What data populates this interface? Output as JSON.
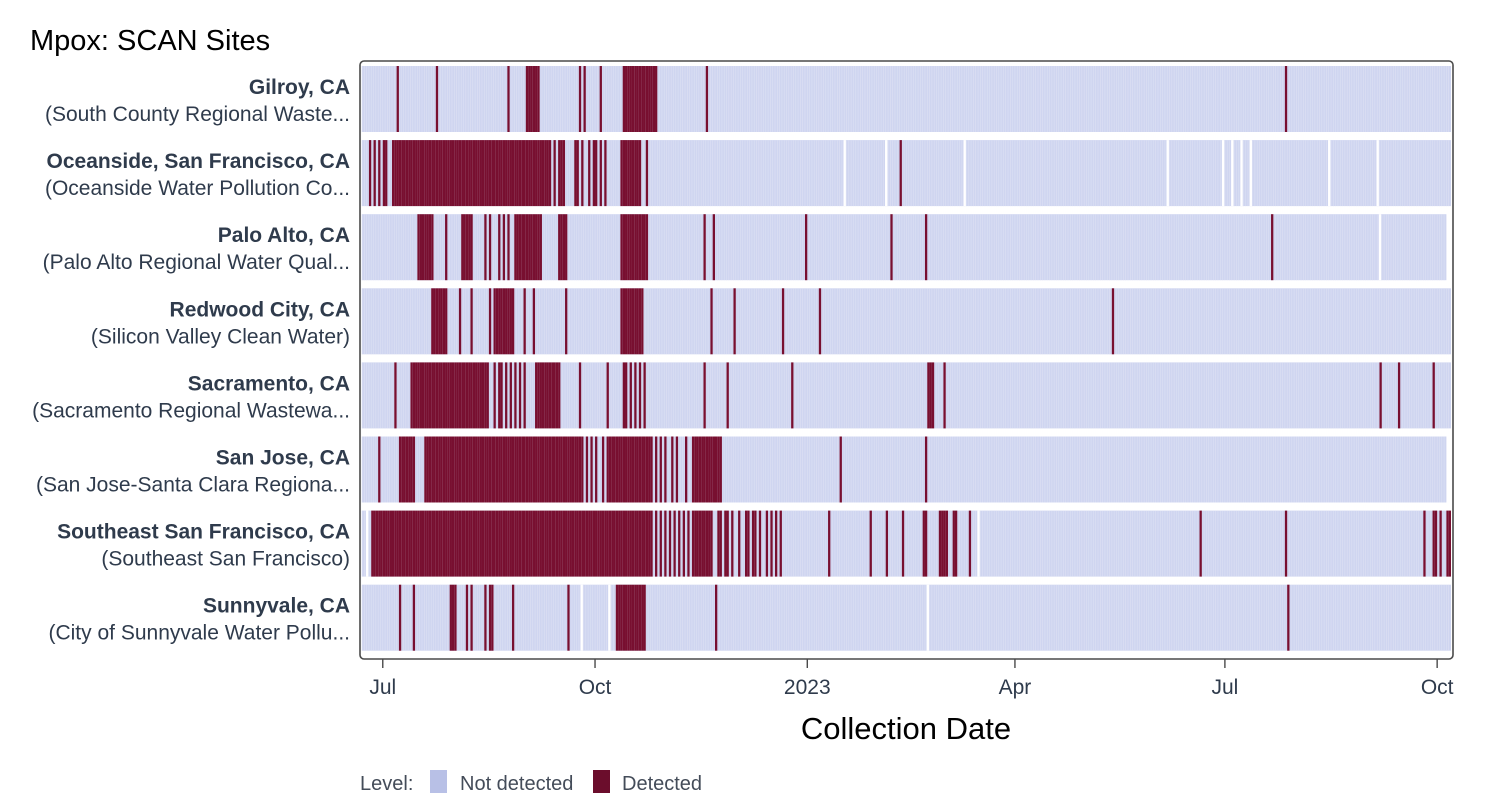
{
  "chart_data": {
    "type": "heatmap",
    "title": "Mpox: SCAN Sites",
    "xlabel": "Collection Date",
    "ylabel": "",
    "x_range": [
      "2022-06-22",
      "2023-10-06"
    ],
    "x_ticks": [
      {
        "date": "2022-07-01",
        "label": "Jul"
      },
      {
        "date": "2022-10-01",
        "label": "Oct"
      },
      {
        "date": "2023-01-01",
        "label": "2023"
      },
      {
        "date": "2023-04-01",
        "label": "Apr"
      },
      {
        "date": "2023-07-01",
        "label": "Jul"
      },
      {
        "date": "2023-10-01",
        "label": "Oct"
      }
    ],
    "legend": {
      "title": "Level:",
      "placement": "bottom-left",
      "items": [
        {
          "label": "Not detected",
          "color": "#b8c0e6"
        },
        {
          "label": "Detected",
          "color": "#6b0d2c"
        }
      ]
    },
    "colors": {
      "not_detected": "#cfd5f0",
      "detected": "#780f30",
      "frame": "#4a4a4a"
    },
    "series": [
      {
        "name": "Gilroy, CA",
        "facility": "(South County Regional Waste...",
        "start": "2022-06-22",
        "end": "2023-10-06",
        "gaps": [],
        "detected": [
          "2022-07-07",
          "2022-07-24",
          "2022-08-24",
          "2022-09-01",
          "2022-09-02",
          "2022-09-03",
          "2022-09-04",
          "2022-09-05",
          "2022-09-06",
          "2022-09-24",
          "2022-09-26",
          "2022-10-03",
          "2022-10-13",
          "2022-10-14",
          "2022-10-15",
          "2022-10-16",
          "2022-10-17",
          "2022-10-18",
          "2022-10-19",
          "2022-10-20",
          "2022-10-21",
          "2022-10-22",
          "2022-10-23",
          "2022-10-24",
          "2022-10-25",
          "2022-10-26",
          "2022-10-27",
          "2022-11-18",
          "2023-07-27"
        ]
      },
      {
        "name": "Oceanside, San Francisco, CA",
        "facility": "(Oceanside Water Pollution Co...",
        "start": "2022-06-22",
        "end": "2023-10-06",
        "gaps": [
          "2023-01-17",
          "2023-02-04",
          "2023-03-10",
          "2023-06-06",
          "2023-06-30",
          "2023-07-04",
          "2023-07-08",
          "2023-07-12",
          "2023-08-15",
          "2023-09-05"
        ],
        "detected": [
          "2022-06-25",
          "2022-06-27",
          "2022-06-29",
          "2022-07-01",
          "2022-07-02",
          "2022-07-05",
          "2022-07-06",
          "2022-07-07",
          "2022-07-08",
          "2022-07-09",
          "2022-07-10",
          "2022-07-11",
          "2022-07-12",
          "2022-07-13",
          "2022-07-14",
          "2022-07-15",
          "2022-07-16",
          "2022-07-17",
          "2022-07-18",
          "2022-07-19",
          "2022-07-20",
          "2022-07-21",
          "2022-07-22",
          "2022-07-23",
          "2022-07-24",
          "2022-07-25",
          "2022-07-26",
          "2022-07-27",
          "2022-07-28",
          "2022-07-29",
          "2022-07-30",
          "2022-07-31",
          "2022-08-01",
          "2022-08-02",
          "2022-08-03",
          "2022-08-04",
          "2022-08-05",
          "2022-08-06",
          "2022-08-07",
          "2022-08-08",
          "2022-08-09",
          "2022-08-10",
          "2022-08-11",
          "2022-08-12",
          "2022-08-13",
          "2022-08-14",
          "2022-08-15",
          "2022-08-16",
          "2022-08-17",
          "2022-08-18",
          "2022-08-19",
          "2022-08-20",
          "2022-08-21",
          "2022-08-22",
          "2022-08-23",
          "2022-08-24",
          "2022-08-25",
          "2022-08-26",
          "2022-08-27",
          "2022-08-28",
          "2022-08-29",
          "2022-08-30",
          "2022-08-31",
          "2022-09-01",
          "2022-09-02",
          "2022-09-03",
          "2022-09-04",
          "2022-09-05",
          "2022-09-06",
          "2022-09-07",
          "2022-09-08",
          "2022-09-09",
          "2022-09-10",
          "2022-09-11",
          "2022-09-13",
          "2022-09-15",
          "2022-09-16",
          "2022-09-17",
          "2022-09-22",
          "2022-09-23",
          "2022-09-25",
          "2022-09-28",
          "2022-09-30",
          "2022-10-01",
          "2022-10-03",
          "2022-10-05",
          "2022-10-12",
          "2022-10-13",
          "2022-10-14",
          "2022-10-15",
          "2022-10-16",
          "2022-10-17",
          "2022-10-18",
          "2022-10-19",
          "2022-10-20",
          "2022-10-23",
          "2023-02-10"
        ]
      },
      {
        "name": "Palo Alto, CA",
        "facility": "(Palo Alto Regional Water Qual...",
        "start": "2022-06-22",
        "end": "2023-10-04",
        "gaps": [
          "2023-09-06"
        ],
        "detected": [
          "2022-07-16",
          "2022-07-17",
          "2022-07-18",
          "2022-07-19",
          "2022-07-20",
          "2022-07-21",
          "2022-07-22",
          "2022-07-28",
          "2022-08-04",
          "2022-08-05",
          "2022-08-06",
          "2022-08-07",
          "2022-08-08",
          "2022-08-14",
          "2022-08-16",
          "2022-08-20",
          "2022-08-22",
          "2022-08-24",
          "2022-08-27",
          "2022-08-28",
          "2022-08-29",
          "2022-08-30",
          "2022-08-31",
          "2022-09-01",
          "2022-09-02",
          "2022-09-03",
          "2022-09-04",
          "2022-09-05",
          "2022-09-06",
          "2022-09-07",
          "2022-09-15",
          "2022-09-16",
          "2022-09-17",
          "2022-09-18",
          "2022-10-12",
          "2022-10-13",
          "2022-10-14",
          "2022-10-15",
          "2022-10-16",
          "2022-10-17",
          "2022-10-18",
          "2022-10-19",
          "2022-10-20",
          "2022-10-21",
          "2022-10-22",
          "2022-10-23",
          "2022-11-17",
          "2022-11-21",
          "2022-12-31",
          "2023-02-06",
          "2023-02-21",
          "2023-07-21"
        ]
      },
      {
        "name": "Redwood City, CA",
        "facility": "(Silicon Valley Clean Water)",
        "start": "2022-06-22",
        "end": "2023-10-06",
        "gaps": [],
        "detected": [
          "2022-07-22",
          "2022-07-23",
          "2022-07-24",
          "2022-07-25",
          "2022-07-26",
          "2022-07-27",
          "2022-07-28",
          "2022-08-03",
          "2022-08-08",
          "2022-08-16",
          "2022-08-18",
          "2022-08-19",
          "2022-08-20",
          "2022-08-21",
          "2022-08-22",
          "2022-08-23",
          "2022-08-24",
          "2022-08-25",
          "2022-08-26",
          "2022-08-31",
          "2022-09-04",
          "2022-09-18",
          "2022-10-12",
          "2022-10-13",
          "2022-10-14",
          "2022-10-15",
          "2022-10-16",
          "2022-10-17",
          "2022-10-18",
          "2022-10-19",
          "2022-10-20",
          "2022-10-21",
          "2022-11-20",
          "2022-11-30",
          "2022-12-21",
          "2023-01-06",
          "2023-05-13"
        ]
      },
      {
        "name": "Sacramento, CA",
        "facility": "(Sacramento Regional Wastewa...",
        "start": "2022-06-22",
        "end": "2023-10-06",
        "gaps": [],
        "detected": [
          "2022-07-06",
          "2022-07-13",
          "2022-07-14",
          "2022-07-15",
          "2022-07-16",
          "2022-07-17",
          "2022-07-18",
          "2022-07-19",
          "2022-07-20",
          "2022-07-21",
          "2022-07-22",
          "2022-07-23",
          "2022-07-24",
          "2022-07-25",
          "2022-07-26",
          "2022-07-27",
          "2022-07-28",
          "2022-07-29",
          "2022-07-30",
          "2022-07-31",
          "2022-08-01",
          "2022-08-02",
          "2022-08-03",
          "2022-08-04",
          "2022-08-05",
          "2022-08-06",
          "2022-08-07",
          "2022-08-08",
          "2022-08-09",
          "2022-08-10",
          "2022-08-11",
          "2022-08-12",
          "2022-08-13",
          "2022-08-14",
          "2022-08-15",
          "2022-08-18",
          "2022-08-20",
          "2022-08-21",
          "2022-08-23",
          "2022-08-25",
          "2022-08-27",
          "2022-08-29",
          "2022-08-31",
          "2022-09-05",
          "2022-09-06",
          "2022-09-07",
          "2022-09-08",
          "2022-09-09",
          "2022-09-10",
          "2022-09-11",
          "2022-09-12",
          "2022-09-13",
          "2022-09-14",
          "2022-09-15",
          "2022-09-24",
          "2022-10-06",
          "2022-10-13",
          "2022-10-14",
          "2022-10-16",
          "2022-10-18",
          "2022-10-20",
          "2022-10-22",
          "2022-11-17",
          "2022-11-27",
          "2022-12-25",
          "2023-02-22",
          "2023-02-23",
          "2023-02-24",
          "2023-03-01",
          "2023-09-06",
          "2023-09-14",
          "2023-09-29"
        ]
      },
      {
        "name": "San Jose, CA",
        "facility": "(San Jose-Santa Clara Regiona...",
        "start": "2022-06-22",
        "end": "2023-10-04",
        "gaps": [],
        "detected": [
          "2022-06-29",
          "2022-07-08",
          "2022-07-09",
          "2022-07-10",
          "2022-07-11",
          "2022-07-12",
          "2022-07-13",
          "2022-07-14",
          "2022-07-19",
          "2022-07-20",
          "2022-07-21",
          "2022-07-22",
          "2022-07-23",
          "2022-07-24",
          "2022-07-25",
          "2022-07-26",
          "2022-07-27",
          "2022-07-28",
          "2022-07-29",
          "2022-07-30",
          "2022-07-31",
          "2022-08-01",
          "2022-08-02",
          "2022-08-03",
          "2022-08-04",
          "2022-08-05",
          "2022-08-06",
          "2022-08-07",
          "2022-08-08",
          "2022-08-09",
          "2022-08-10",
          "2022-08-11",
          "2022-08-12",
          "2022-08-13",
          "2022-08-14",
          "2022-08-15",
          "2022-08-16",
          "2022-08-17",
          "2022-08-18",
          "2022-08-19",
          "2022-08-20",
          "2022-08-21",
          "2022-08-22",
          "2022-08-23",
          "2022-08-24",
          "2022-08-25",
          "2022-08-26",
          "2022-08-27",
          "2022-08-28",
          "2022-08-29",
          "2022-08-30",
          "2022-08-31",
          "2022-09-01",
          "2022-09-02",
          "2022-09-03",
          "2022-09-04",
          "2022-09-05",
          "2022-09-06",
          "2022-09-07",
          "2022-09-08",
          "2022-09-09",
          "2022-09-10",
          "2022-09-11",
          "2022-09-12",
          "2022-09-13",
          "2022-09-14",
          "2022-09-15",
          "2022-09-16",
          "2022-09-17",
          "2022-09-18",
          "2022-09-19",
          "2022-09-20",
          "2022-09-21",
          "2022-09-22",
          "2022-09-23",
          "2022-09-24",
          "2022-09-25",
          "2022-09-27",
          "2022-09-29",
          "2022-10-01",
          "2022-10-04",
          "2022-10-06",
          "2022-10-07",
          "2022-10-08",
          "2022-10-09",
          "2022-10-10",
          "2022-10-11",
          "2022-10-12",
          "2022-10-13",
          "2022-10-14",
          "2022-10-15",
          "2022-10-16",
          "2022-10-17",
          "2022-10-18",
          "2022-10-19",
          "2022-10-20",
          "2022-10-21",
          "2022-10-22",
          "2022-10-23",
          "2022-10-24",
          "2022-10-25",
          "2022-10-27",
          "2022-10-29",
          "2022-10-31",
          "2022-11-03",
          "2022-11-05",
          "2022-11-09",
          "2022-11-12",
          "2022-11-13",
          "2022-11-14",
          "2022-11-15",
          "2022-11-16",
          "2022-11-17",
          "2022-11-18",
          "2022-11-19",
          "2022-11-20",
          "2022-11-21",
          "2022-11-22",
          "2022-11-23",
          "2022-11-24",
          "2023-01-15",
          "2023-02-21"
        ]
      },
      {
        "name": "Southeast San Francisco, CA",
        "facility": "(Southeast San Francisco)",
        "start": "2022-06-22",
        "end": "2023-10-06",
        "gaps": [
          "2022-06-24",
          "2023-03-16"
        ],
        "detected": [
          "2022-06-26",
          "2022-06-27",
          "2022-06-28",
          "2022-06-29",
          "2022-06-30",
          "2022-07-01",
          "2022-07-02",
          "2022-07-03",
          "2022-07-04",
          "2022-07-05",
          "2022-07-06",
          "2022-07-07",
          "2022-07-08",
          "2022-07-09",
          "2022-07-10",
          "2022-07-11",
          "2022-07-12",
          "2022-07-13",
          "2022-07-14",
          "2022-07-15",
          "2022-07-16",
          "2022-07-17",
          "2022-07-18",
          "2022-07-19",
          "2022-07-20",
          "2022-07-21",
          "2022-07-22",
          "2022-07-23",
          "2022-07-24",
          "2022-07-25",
          "2022-07-26",
          "2022-07-27",
          "2022-07-28",
          "2022-07-29",
          "2022-07-30",
          "2022-07-31",
          "2022-08-01",
          "2022-08-02",
          "2022-08-03",
          "2022-08-04",
          "2022-08-05",
          "2022-08-06",
          "2022-08-07",
          "2022-08-08",
          "2022-08-09",
          "2022-08-10",
          "2022-08-11",
          "2022-08-12",
          "2022-08-13",
          "2022-08-14",
          "2022-08-15",
          "2022-08-16",
          "2022-08-17",
          "2022-08-18",
          "2022-08-19",
          "2022-08-20",
          "2022-08-21",
          "2022-08-22",
          "2022-08-23",
          "2022-08-24",
          "2022-08-25",
          "2022-08-26",
          "2022-08-27",
          "2022-08-28",
          "2022-08-29",
          "2022-08-30",
          "2022-08-31",
          "2022-09-01",
          "2022-09-02",
          "2022-09-03",
          "2022-09-04",
          "2022-09-05",
          "2022-09-06",
          "2022-09-07",
          "2022-09-08",
          "2022-09-09",
          "2022-09-10",
          "2022-09-11",
          "2022-09-12",
          "2022-09-13",
          "2022-09-14",
          "2022-09-15",
          "2022-09-16",
          "2022-09-17",
          "2022-09-18",
          "2022-09-19",
          "2022-09-20",
          "2022-09-21",
          "2022-09-22",
          "2022-09-23",
          "2022-09-24",
          "2022-09-25",
          "2022-09-26",
          "2022-09-27",
          "2022-09-28",
          "2022-09-29",
          "2022-09-30",
          "2022-10-01",
          "2022-10-02",
          "2022-10-03",
          "2022-10-04",
          "2022-10-05",
          "2022-10-06",
          "2022-10-07",
          "2022-10-08",
          "2022-10-09",
          "2022-10-10",
          "2022-10-11",
          "2022-10-12",
          "2022-10-13",
          "2022-10-14",
          "2022-10-15",
          "2022-10-16",
          "2022-10-17",
          "2022-10-18",
          "2022-10-19",
          "2022-10-20",
          "2022-10-21",
          "2022-10-22",
          "2022-10-23",
          "2022-10-24",
          "2022-10-25",
          "2022-10-27",
          "2022-10-29",
          "2022-10-31",
          "2022-11-02",
          "2022-11-04",
          "2022-11-06",
          "2022-11-08",
          "2022-11-10",
          "2022-11-12",
          "2022-11-13",
          "2022-11-14",
          "2022-11-15",
          "2022-11-16",
          "2022-11-17",
          "2022-11-18",
          "2022-11-19",
          "2022-11-20",
          "2022-11-23",
          "2022-11-24",
          "2022-11-26",
          "2022-11-27",
          "2022-11-29",
          "2022-12-02",
          "2022-12-05",
          "2022-12-06",
          "2022-12-08",
          "2022-12-09",
          "2022-12-11",
          "2022-12-14",
          "2022-12-16",
          "2022-12-18",
          "2022-12-20",
          "2023-01-10",
          "2023-01-28",
          "2023-02-04",
          "2023-02-11",
          "2023-02-20",
          "2023-02-21",
          "2023-02-27",
          "2023-02-28",
          "2023-03-01",
          "2023-03-02",
          "2023-03-05",
          "2023-03-06",
          "2023-03-12",
          "2023-06-20",
          "2023-07-27",
          "2023-09-25",
          "2023-09-29",
          "2023-09-30",
          "2023-10-02",
          "2023-10-05",
          "2023-10-06"
        ]
      },
      {
        "name": "Sunnyvale, CA",
        "facility": "(City of Sunnyvale Water Pollu...",
        "start": "2022-06-22",
        "end": "2023-10-06",
        "gaps": [
          "2022-09-25",
          "2022-10-07",
          "2023-02-22"
        ],
        "detected": [
          "2022-07-08",
          "2022-07-14",
          "2022-07-30",
          "2022-07-31",
          "2022-08-01",
          "2022-08-06",
          "2022-08-08",
          "2022-08-14",
          "2022-08-16",
          "2022-08-17",
          "2022-08-26",
          "2022-09-19",
          "2022-10-10",
          "2022-10-11",
          "2022-10-12",
          "2022-10-13",
          "2022-10-14",
          "2022-10-15",
          "2022-10-16",
          "2022-10-17",
          "2022-10-18",
          "2022-10-19",
          "2022-10-20",
          "2022-10-21",
          "2022-10-22",
          "2022-11-22",
          "2023-07-28"
        ]
      }
    ]
  }
}
